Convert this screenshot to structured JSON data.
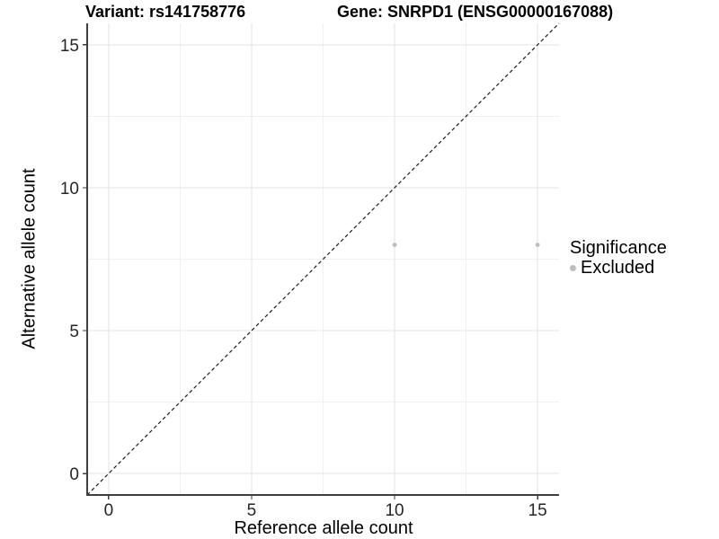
{
  "figure": {
    "background": "#ffffff",
    "title_left": "Variant: rs141758776",
    "title_right": "Gene: SNRPD1 (ENSG00000167088)"
  },
  "chart_data": {
    "type": "scatter",
    "title_left": "Variant: rs141758776",
    "title_right": "Gene: SNRPD1 (ENSG00000167088)",
    "xlabel": "Reference allele count",
    "ylabel": "Alternative allele count",
    "xlim": [
      -0.75,
      15.75
    ],
    "ylim": [
      -0.75,
      15.75
    ],
    "x_ticks": [
      0,
      5,
      10,
      15
    ],
    "y_ticks": [
      0,
      5,
      10,
      15
    ],
    "minor_breaks": [
      2.5,
      7.5,
      12.5
    ],
    "grid": "major+minor",
    "reference_line": {
      "type": "identity",
      "slope": 1,
      "intercept": 0,
      "style": "dashed",
      "color": "#1a1a1a"
    },
    "series": [
      {
        "name": "Excluded",
        "color": "#bdbdbd",
        "points": [
          {
            "x": 10,
            "y": 8
          },
          {
            "x": 15,
            "y": 8
          }
        ]
      }
    ],
    "legend": {
      "title": "Significance",
      "position": "right",
      "entries": [
        {
          "label": "Excluded",
          "color": "#bdbdbd"
        }
      ]
    },
    "style": {
      "grid_major_color": "#e3e3e3",
      "grid_minor_color": "#f0f0f0",
      "axis_line_color": "#3f3f3f",
      "tick_color": "#3f3f3f",
      "tick_label_color": "#262626",
      "tick_label_size": 19,
      "point_radius_px": 2.4,
      "legend_key_radius_px": 3.5
    }
  }
}
